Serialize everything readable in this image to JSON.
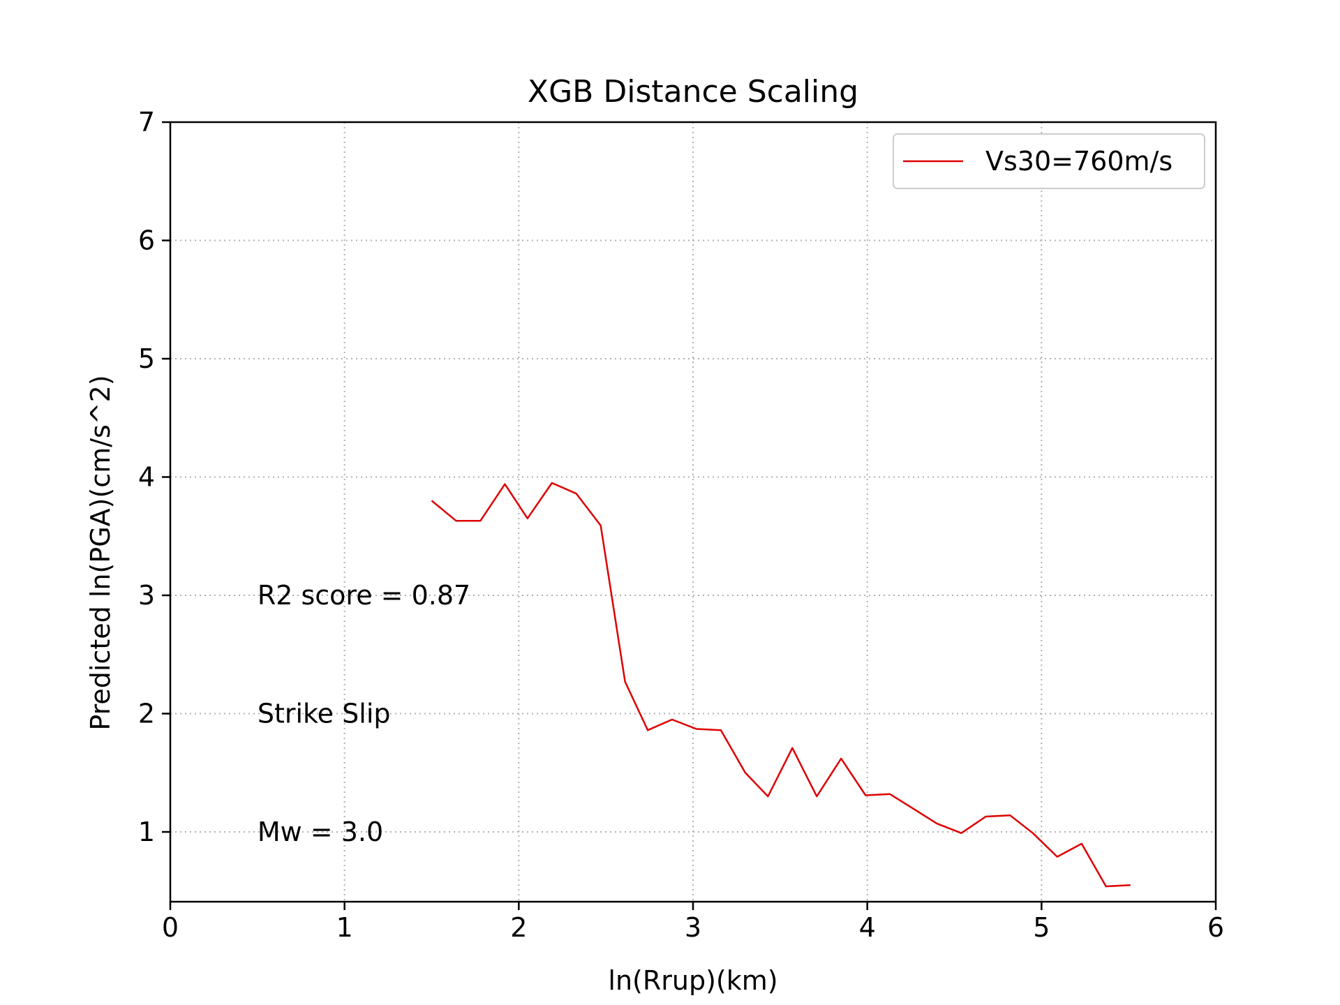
{
  "chart_data": {
    "type": "line",
    "title": "XGB Distance Scaling",
    "xlabel": "ln(Rrup)(km)",
    "ylabel": "Predicted ln(PGA)(cm/s^2)",
    "xlim": [
      0,
      6
    ],
    "ylim": [
      0.41,
      7
    ],
    "xticks": [
      0,
      1,
      2,
      3,
      4,
      5,
      6
    ],
    "yticks": [
      1,
      2,
      3,
      4,
      5,
      6,
      7
    ],
    "grid": true,
    "legend_position": "top-right",
    "series": [
      {
        "name": "Vs30=760m/s",
        "color": "#dd0000",
        "x": [
          1.5,
          1.64,
          1.78,
          1.92,
          2.05,
          2.19,
          2.33,
          2.47,
          2.61,
          2.74,
          2.88,
          3.02,
          3.16,
          3.3,
          3.43,
          3.57,
          3.71,
          3.85,
          3.99,
          4.13,
          4.26,
          4.4,
          4.54,
          4.68,
          4.82,
          4.95,
          5.09,
          5.23,
          5.37,
          5.51
        ],
        "y": [
          3.8,
          3.63,
          3.63,
          3.94,
          3.65,
          3.95,
          3.86,
          3.59,
          2.27,
          1.86,
          1.95,
          1.87,
          1.86,
          1.5,
          1.3,
          1.71,
          1.3,
          1.62,
          1.31,
          1.32,
          1.2,
          1.07,
          0.99,
          1.13,
          1.14,
          0.99,
          0.79,
          0.9,
          0.54,
          0.55
        ]
      }
    ],
    "annotations": [
      {
        "text": "R2 score = 0.87",
        "x": 0.5,
        "y": 3.0
      },
      {
        "text": "Strike Slip",
        "x": 0.5,
        "y": 2.0
      },
      {
        "text": "Mw = 3.0",
        "x": 0.5,
        "y": 1.0
      }
    ]
  }
}
